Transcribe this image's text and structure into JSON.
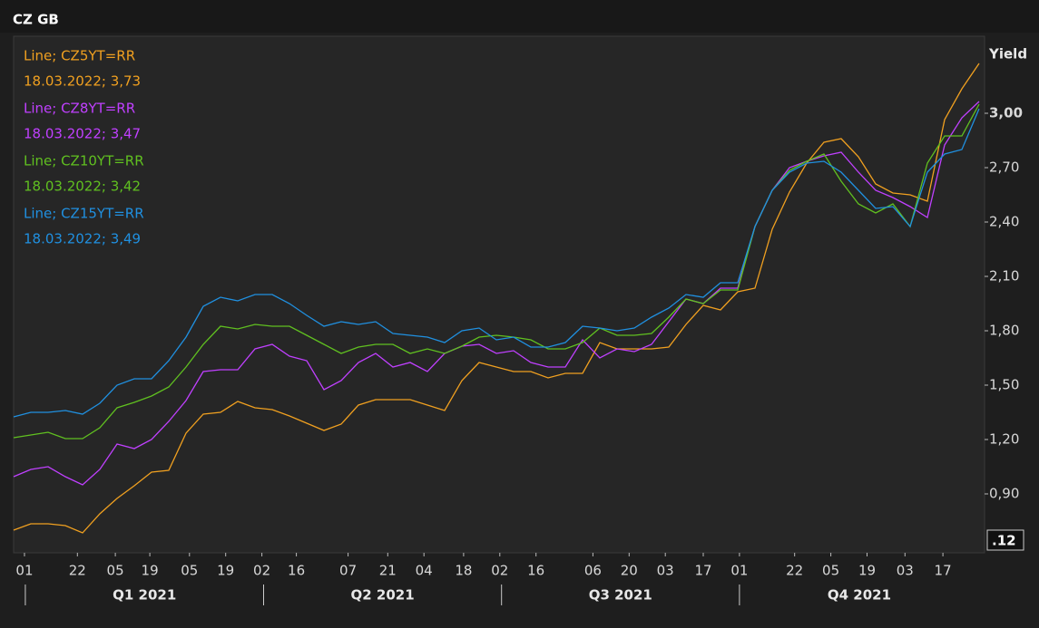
{
  "chart_data": {
    "type": "line",
    "title": "CZ GB",
    "ylabel": "Yield",
    "annotation": ".12",
    "xlim": [
      0,
      56.316
    ],
    "ylim": [
      0.575,
      3.425
    ],
    "yticks": [
      {
        "value": 0.9,
        "label": "0,90"
      },
      {
        "value": 1.2,
        "label": "1,20"
      },
      {
        "value": 1.5,
        "label": "1,50"
      },
      {
        "value": 1.8,
        "label": "1,80"
      },
      {
        "value": 2.1,
        "label": "2,10"
      },
      {
        "value": 2.4,
        "label": "2,40"
      },
      {
        "value": 2.7,
        "label": "2,70"
      },
      {
        "value": 3.0,
        "label": "3,00"
      }
    ],
    "xticks": [
      {
        "value": 0.63,
        "label": "01"
      },
      {
        "value": 3.7,
        "label": "22"
      },
      {
        "value": 5.9,
        "label": "05"
      },
      {
        "value": 7.9,
        "label": "19"
      },
      {
        "value": 10.2,
        "label": "05"
      },
      {
        "value": 12.3,
        "label": "19"
      },
      {
        "value": 14.4,
        "label": "02"
      },
      {
        "value": 16.4,
        "label": "16"
      },
      {
        "value": 19.4,
        "label": "07"
      },
      {
        "value": 21.7,
        "label": "21"
      },
      {
        "value": 23.8,
        "label": "04"
      },
      {
        "value": 26.1,
        "label": "18"
      },
      {
        "value": 28.2,
        "label": "02"
      },
      {
        "value": 30.3,
        "label": "16"
      },
      {
        "value": 33.6,
        "label": "06"
      },
      {
        "value": 35.7,
        "label": "20"
      },
      {
        "value": 37.8,
        "label": "03"
      },
      {
        "value": 40.0,
        "label": "17"
      },
      {
        "value": 42.1,
        "label": "01"
      },
      {
        "value": 45.3,
        "label": "22"
      },
      {
        "value": 47.4,
        "label": "05"
      },
      {
        "value": 49.5,
        "label": "19"
      },
      {
        "value": 51.7,
        "label": "03"
      },
      {
        "value": 53.9,
        "label": "17"
      }
    ],
    "quarters": [
      {
        "label": "Q1 2021",
        "start": 0.68,
        "end": 14.5
      },
      {
        "label": "Q2 2021",
        "start": 14.5,
        "end": 28.3
      },
      {
        "label": "Q3 2021",
        "start": 28.3,
        "end": 42.1
      },
      {
        "label": "Q4 2021",
        "start": 42.1,
        "end": 56.0
      }
    ],
    "x": [
      0,
      1,
      2,
      3,
      4,
      5,
      6,
      7,
      8,
      9,
      10,
      11,
      12,
      13,
      14,
      15,
      16,
      17,
      18,
      19,
      20,
      21,
      22,
      23,
      24,
      25,
      26,
      27,
      28,
      29,
      30,
      31,
      32,
      33,
      34,
      35,
      36,
      37,
      38,
      39,
      40,
      41,
      42,
      43,
      44,
      45,
      46,
      47,
      48,
      49,
      50,
      51,
      52,
      53,
      54,
      55,
      56
    ],
    "series": [
      {
        "name": "Line; CZ5YT=RR",
        "last_label": "18.03.2022; 3,73",
        "color": "#f0a020",
        "values": [
          0.7,
          0.735,
          0.735,
          0.725,
          0.685,
          0.79,
          0.875,
          0.945,
          1.02,
          1.03,
          1.235,
          1.34,
          1.35,
          1.41,
          1.375,
          1.365,
          1.33,
          1.29,
          1.25,
          1.285,
          1.39,
          1.42,
          1.42,
          1.42,
          1.39,
          1.36,
          1.525,
          1.625,
          1.6,
          1.575,
          1.575,
          1.54,
          1.565,
          1.565,
          1.735,
          1.7,
          1.7,
          1.7,
          1.71,
          1.835,
          1.94,
          1.915,
          2.015,
          2.035,
          2.36,
          2.565,
          2.725,
          2.84,
          2.86,
          2.76,
          2.61,
          2.56,
          2.55,
          2.515,
          2.965,
          3.135,
          3.275
        ]
      },
      {
        "name": "Line; CZ8YT=RR",
        "last_label": "18.03.2022; 3,47",
        "color": "#c040ff",
        "values": [
          0.995,
          1.035,
          1.05,
          0.995,
          0.95,
          1.035,
          1.175,
          1.15,
          1.2,
          1.3,
          1.415,
          1.575,
          1.585,
          1.585,
          1.7,
          1.725,
          1.66,
          1.635,
          1.475,
          1.525,
          1.625,
          1.675,
          1.6,
          1.625,
          1.575,
          1.675,
          1.715,
          1.725,
          1.675,
          1.69,
          1.625,
          1.6,
          1.6,
          1.75,
          1.65,
          1.7,
          1.685,
          1.725,
          1.85,
          1.975,
          1.95,
          2.035,
          2.035,
          2.375,
          2.575,
          2.7,
          2.735,
          2.765,
          2.785,
          2.675,
          2.575,
          2.535,
          2.485,
          2.425,
          2.825,
          2.975,
          3.065
        ]
      },
      {
        "name": "Line; CZ10YT=RR",
        "last_label": "18.03.2022; 3,42",
        "color": "#60c020",
        "values": [
          1.21,
          1.225,
          1.24,
          1.205,
          1.205,
          1.265,
          1.375,
          1.405,
          1.44,
          1.49,
          1.6,
          1.725,
          1.825,
          1.81,
          1.835,
          1.825,
          1.825,
          1.775,
          1.725,
          1.675,
          1.71,
          1.725,
          1.725,
          1.675,
          1.7,
          1.675,
          1.715,
          1.765,
          1.775,
          1.765,
          1.75,
          1.7,
          1.7,
          1.735,
          1.815,
          1.775,
          1.775,
          1.785,
          1.875,
          1.975,
          1.95,
          2.025,
          2.025,
          2.375,
          2.575,
          2.685,
          2.735,
          2.775,
          2.625,
          2.5,
          2.45,
          2.5,
          2.375,
          2.725,
          2.875,
          2.875,
          3.05
        ]
      },
      {
        "name": "Line; CZ15YT=RR",
        "last_label": "18.03.2022; 3,49",
        "color": "#2090e0",
        "values": [
          1.325,
          1.35,
          1.35,
          1.36,
          1.34,
          1.4,
          1.5,
          1.535,
          1.535,
          1.635,
          1.765,
          1.935,
          1.985,
          1.965,
          2.0,
          2.0,
          1.95,
          1.885,
          1.825,
          1.85,
          1.835,
          1.85,
          1.785,
          1.775,
          1.765,
          1.735,
          1.8,
          1.815,
          1.75,
          1.765,
          1.71,
          1.71,
          1.735,
          1.825,
          1.815,
          1.8,
          1.815,
          1.875,
          1.925,
          2.0,
          1.985,
          2.065,
          2.065,
          2.375,
          2.575,
          2.675,
          2.725,
          2.735,
          2.675,
          2.575,
          2.475,
          2.485,
          2.375,
          2.675,
          2.775,
          2.8,
          3.025
        ]
      }
    ]
  }
}
